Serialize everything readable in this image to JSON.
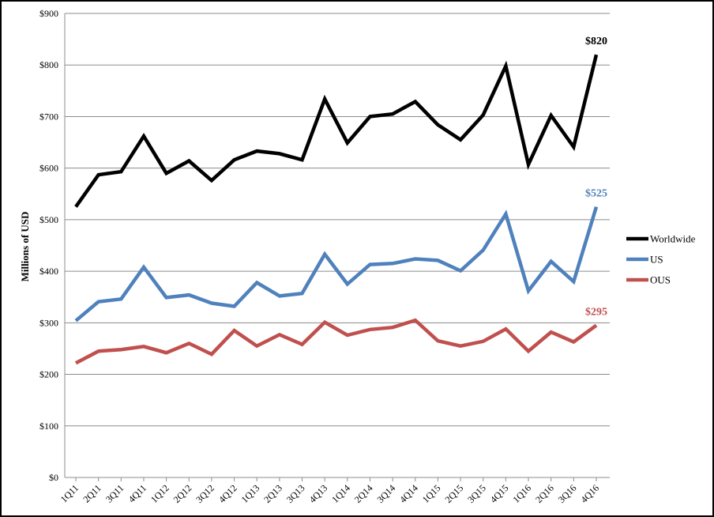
{
  "chart_data": {
    "type": "line",
    "title": "",
    "xlabel": "",
    "ylabel": "Millions of USD",
    "ylim": [
      0,
      900
    ],
    "y_ticks": [
      0,
      100,
      200,
      300,
      400,
      500,
      600,
      700,
      800,
      900
    ],
    "y_tick_labels": [
      "$0",
      "$100",
      "$200",
      "$300",
      "$400",
      "$500",
      "$600",
      "$700",
      "$800",
      "$900"
    ],
    "grid": true,
    "legend_position": "right",
    "categories": [
      "1Q11",
      "2Q11",
      "3Q11",
      "4Q11",
      "1Q12",
      "2Q12",
      "3Q12",
      "4Q12",
      "1Q13",
      "2Q13",
      "3Q13",
      "4Q13",
      "1Q14",
      "2Q14",
      "3Q14",
      "4Q14",
      "1Q15",
      "2Q15",
      "3Q15",
      "4Q15",
      "1Q16",
      "2Q16",
      "3Q16",
      "4Q16"
    ],
    "series": [
      {
        "name": "Worldwide",
        "color": "#000000",
        "values": [
          525,
          587,
          593,
          662,
          590,
          614,
          576,
          616,
          633,
          628,
          616,
          734,
          649,
          700,
          705,
          729,
          684,
          655,
          703,
          798,
          607,
          702,
          641,
          820
        ],
        "end_label": "$820"
      },
      {
        "name": "US",
        "color": "#4f81bd",
        "values": [
          304,
          341,
          346,
          408,
          349,
          354,
          338,
          332,
          378,
          352,
          357,
          433,
          375,
          413,
          415,
          424,
          421,
          401,
          441,
          511,
          362,
          419,
          380,
          525
        ],
        "end_label": "$525"
      },
      {
        "name": "OUS",
        "color": "#c0504d",
        "values": [
          222,
          245,
          248,
          254,
          242,
          260,
          239,
          285,
          255,
          277,
          258,
          301,
          276,
          287,
          291,
          305,
          265,
          255,
          264,
          288,
          245,
          282,
          263,
          295
        ],
        "end_label": "$295"
      }
    ]
  }
}
